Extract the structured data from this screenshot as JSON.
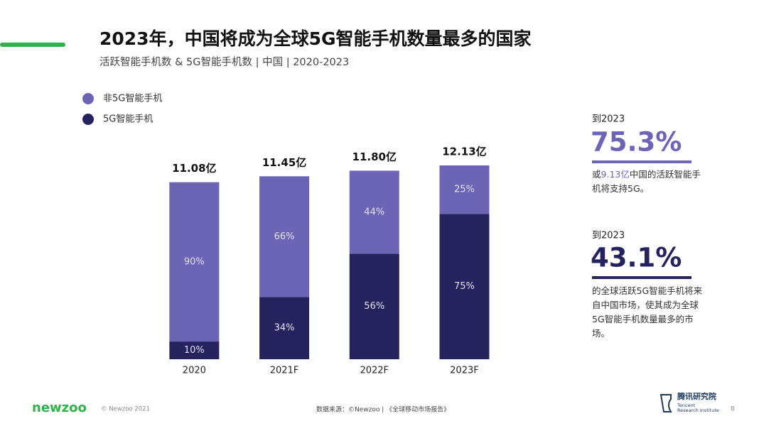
{
  "chart_data": {
    "type": "stacked_bar",
    "title": "2023年，中国将成为全球5G智能手机数量最多的国家",
    "subtitle": "活跃智能手机数 & 5G智能手机数 | 中国 | 2020-2023",
    "categories": [
      "2020",
      "2021F",
      "2022F",
      "2023F"
    ],
    "series": [
      {
        "name": "非5G智能手机",
        "color": "#6c64b4",
        "values": [
          90,
          66,
          44,
          25
        ],
        "value_labels": [
          "90%",
          "66%",
          "44%",
          "25%"
        ]
      },
      {
        "name": "5G智能手机",
        "color": "#25235e",
        "values": [
          10,
          34,
          56,
          75
        ],
        "value_labels": [
          "10%",
          "34%",
          "56%",
          "75%"
        ]
      }
    ],
    "totals": {
      "values": [
        11.08,
        11.45,
        11.8,
        12.13
      ],
      "value_labels": [
        "11.08亿",
        "11.45亿",
        "11.80亿",
        "12.13亿"
      ]
    }
  },
  "sidebar": [
    {
      "lead": "到2023",
      "stat": "75.3%",
      "color": "#6c64b4",
      "text_before": "或",
      "text_highlight": "9.13亿",
      "text_after": "中国的活跃智能手机将支持5G。"
    },
    {
      "lead": "到2023",
      "stat": "43.1%",
      "color": "#25235e",
      "text_before": "的全球活跃5G智能手机将来自中国市场，使其成为全球5G智能手机数量最多的市场。"
    }
  ],
  "footer": {
    "brand": "newzoo",
    "copyright": "© Newzoo 2021",
    "source": "数据来源：©Newzoo | 《全球移动市场报告》",
    "logo_cn": "腾讯研究院",
    "logo_en_1": "Tencent",
    "logo_en_2": "Research Institute",
    "page": "8"
  }
}
